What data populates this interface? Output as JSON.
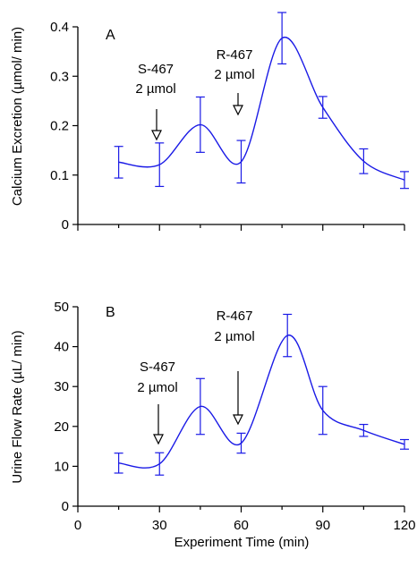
{
  "figure": {
    "xlabel": "Experiment Time (min)",
    "xticks": [
      "0",
      "30",
      "60",
      "90",
      "120"
    ],
    "series_color": "#1a1ae6"
  },
  "chart_data": [
    {
      "type": "line",
      "panel": "A",
      "ylabel": "Calcium Excretion  (µmol/ min)",
      "xlim": [
        0,
        120
      ],
      "ylim": [
        0,
        0.4
      ],
      "yticks": [
        "0",
        "0.1",
        "0.2",
        "0.3",
        "0.4"
      ],
      "annotations": [
        {
          "line1": "S-467",
          "line2": "2 µmol",
          "x": 30
        },
        {
          "line1": "R-467",
          "line2": "2 µmol",
          "x": 60
        }
      ],
      "points": [
        {
          "x": 15,
          "y": 0.126,
          "err": 0.032
        },
        {
          "x": 30,
          "y": 0.121,
          "err": 0.044
        },
        {
          "x": 45,
          "y": 0.202,
          "err": 0.056
        },
        {
          "x": 60,
          "y": 0.127,
          "err": 0.043
        },
        {
          "x": 75,
          "y": 0.377,
          "err": 0.052
        },
        {
          "x": 90,
          "y": 0.237,
          "err": 0.022
        },
        {
          "x": 105,
          "y": 0.128,
          "err": 0.025
        },
        {
          "x": 120,
          "y": 0.09,
          "err": 0.017
        }
      ]
    },
    {
      "type": "line",
      "panel": "B",
      "ylabel": "Urine Flow Rate  (µL/ min)",
      "xlim": [
        0,
        120
      ],
      "ylim": [
        0,
        50
      ],
      "yticks": [
        "0",
        "10",
        "20",
        "30",
        "40",
        "50"
      ],
      "annotations": [
        {
          "line1": "S-467",
          "line2": "2 µmol",
          "x": 30
        },
        {
          "line1": "R-467",
          "line2": "2 µmol",
          "x": 60
        }
      ],
      "points": [
        {
          "x": 15,
          "y": 10.8,
          "err": 2.5
        },
        {
          "x": 30,
          "y": 10.6,
          "err": 2.8
        },
        {
          "x": 45,
          "y": 25.0,
          "err": 7.0
        },
        {
          "x": 60,
          "y": 15.8,
          "err": 2.5
        },
        {
          "x": 77,
          "y": 42.8,
          "err": 5.3
        },
        {
          "x": 90,
          "y": 24.0,
          "err": 6.0
        },
        {
          "x": 105,
          "y": 19.0,
          "err": 1.5
        },
        {
          "x": 120,
          "y": 15.5,
          "err": 1.2
        }
      ]
    }
  ]
}
